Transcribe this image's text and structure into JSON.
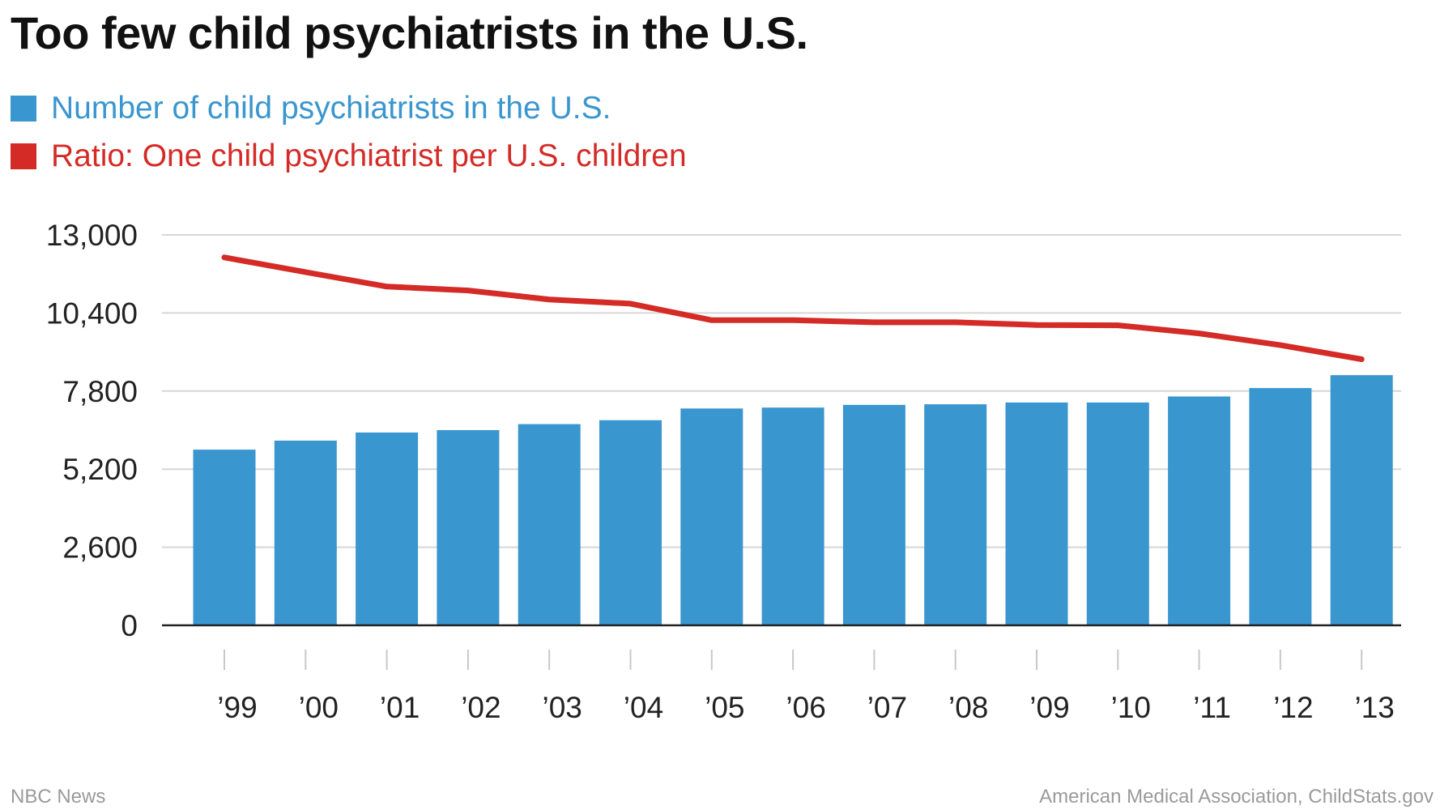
{
  "colors": {
    "bar": "#3a96cf",
    "line": "#d42b27",
    "title": "#111111",
    "grid": "#d6d6d6",
    "axis": "#222222",
    "footer": "#9a9a9a"
  },
  "chart_data": {
    "type": "bar",
    "title": "Too few child psychiatrists in the U.S.",
    "legend": [
      {
        "name": "Number of child psychiatrists in the U.S.",
        "color": "#3a96cf"
      },
      {
        "name": "Ratio: One child psychiatrist per U.S. children",
        "color": "#d42b27"
      }
    ],
    "categories": [
      "’99",
      "’00",
      "’01",
      "’02",
      "’03",
      "’04",
      "’05",
      "’06",
      "’07",
      "’08",
      "’09",
      "’10",
      "’11",
      "’12",
      "’13"
    ],
    "series": [
      {
        "name": "Number of child psychiatrists in the U.S.",
        "type": "bar",
        "color": "#3a96cf",
        "values": [
          5850,
          6150,
          6420,
          6500,
          6700,
          6830,
          7220,
          7250,
          7340,
          7360,
          7420,
          7420,
          7620,
          7900,
          8330
        ]
      },
      {
        "name": "Ratio: One child psychiatrist per U.S. children",
        "type": "line",
        "color": "#d42b27",
        "values": [
          12250,
          11760,
          11280,
          11150,
          10850,
          10710,
          10160,
          10160,
          10090,
          10090,
          10000,
          9990,
          9720,
          9330,
          8860
        ]
      }
    ],
    "y_ticks": [
      "0",
      "2,600",
      "5,200",
      "7,800",
      "10,400",
      "13,000"
    ],
    "y_tick_values": [
      0,
      2600,
      5200,
      7800,
      10400,
      13000
    ],
    "ylim": [
      0,
      13000
    ],
    "xlabel": "",
    "ylabel": "",
    "grid": true,
    "legend_position": "top-left"
  },
  "footer": {
    "left": "NBC News",
    "right": "American Medical Association, ChildStats.gov"
  }
}
